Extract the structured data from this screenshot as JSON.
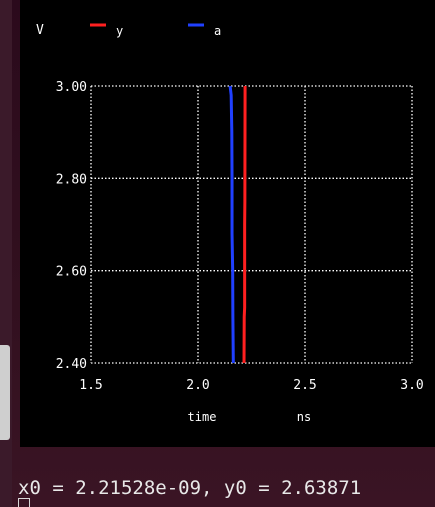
{
  "status_line": "x0 = 2.21528e-09, y0 = 2.63871",
  "colors": {
    "background": "#000000",
    "grid": "#ffffff",
    "text": "#ffffff",
    "series_y": "#ff2020",
    "series_a": "#2040ff"
  },
  "chart_data": {
    "type": "line",
    "title": "",
    "ylabel": "V",
    "xlabel": "time",
    "xunit": "ns",
    "xlim": [
      1.5,
      3.0
    ],
    "ylim": [
      2.4,
      3.0
    ],
    "xticks": [
      1.5,
      2.0,
      2.5,
      3.0
    ],
    "xtick_labels": [
      "1.5",
      "2.0",
      "2.5",
      "3.0"
    ],
    "yticks": [
      2.4,
      2.6,
      2.8,
      3.0
    ],
    "ytick_labels": [
      "2.40",
      "2.60",
      "2.80",
      "3.00"
    ],
    "grid": true,
    "legend_position": "top",
    "series": [
      {
        "name": "y",
        "color": "#ff2020",
        "points": [
          [
            2.215,
            2.4
          ],
          [
            2.216,
            2.5
          ],
          [
            2.218,
            2.52
          ],
          [
            2.218,
            2.7
          ],
          [
            2.219,
            2.75
          ],
          [
            2.22,
            3.0
          ]
        ]
      },
      {
        "name": "a",
        "color": "#2040ff",
        "points": [
          [
            2.165,
            2.4
          ],
          [
            2.163,
            2.5
          ],
          [
            2.162,
            2.6
          ],
          [
            2.159,
            2.68
          ],
          [
            2.159,
            2.8
          ],
          [
            2.158,
            2.9
          ],
          [
            2.155,
            2.98
          ],
          [
            2.15,
            3.0
          ]
        ]
      }
    ]
  }
}
